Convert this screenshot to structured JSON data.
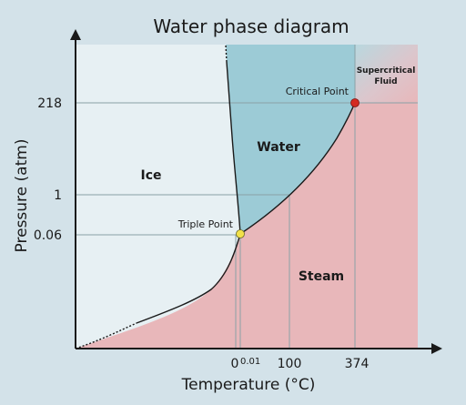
{
  "title": "Water phase diagram",
  "axes": {
    "x_label": "Temperature  (°C)",
    "y_label": "Pressure  (atm)",
    "x_ticks": [
      {
        "label": "0"
      },
      {
        "label": "0.01"
      },
      {
        "label": "100"
      },
      {
        "label": "374"
      }
    ],
    "y_ticks": [
      {
        "label": "218"
      },
      {
        "label": "1"
      },
      {
        "label": "0.06"
      }
    ]
  },
  "regions": {
    "ice": "Ice",
    "water": "Water",
    "steam": "Steam",
    "supercritical_line1": "Supercritical",
    "supercritical_line2": "Fluid"
  },
  "points": {
    "triple": {
      "label": "Triple Point",
      "color": "#f2e14a",
      "temperature": 0.01,
      "pressure": 0.06
    },
    "critical": {
      "label": "Critical Point",
      "color": "#d42a20",
      "temperature": 374,
      "pressure": 218
    }
  },
  "colors": {
    "background": "#d3e2e9",
    "ice": "#e7f0f3",
    "water": "#9ccbd6",
    "steam": "#e8b7ba",
    "supercritical": "#d7c7ce",
    "guide_lines": "#8aa0a6",
    "curves": "#1a1a1a"
  }
}
